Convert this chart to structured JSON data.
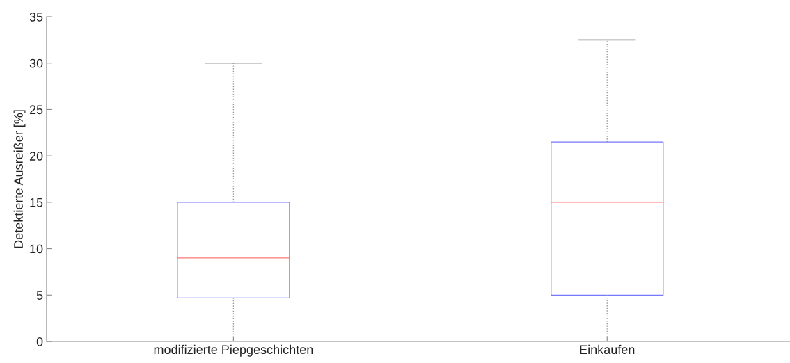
{
  "chart_data": {
    "type": "box",
    "ylabel": "Detektierte Ausreißer [%]",
    "categories": [
      "modifizierte Piepgeschichten",
      "Einkaufen"
    ],
    "series": [
      {
        "color": "#7777ff",
        "boxes": [
          {
            "low": 0,
            "q1": 4.7,
            "median": 9,
            "q3": 15,
            "high": 30
          },
          {
            "low": 0,
            "q1": 5,
            "median": 15,
            "q3": 21.5,
            "high": 32.5
          }
        ]
      }
    ],
    "ylim": [
      0,
      35
    ],
    "yticks": [
      0,
      5,
      10,
      15,
      20,
      25,
      30,
      35
    ],
    "grid": false
  }
}
